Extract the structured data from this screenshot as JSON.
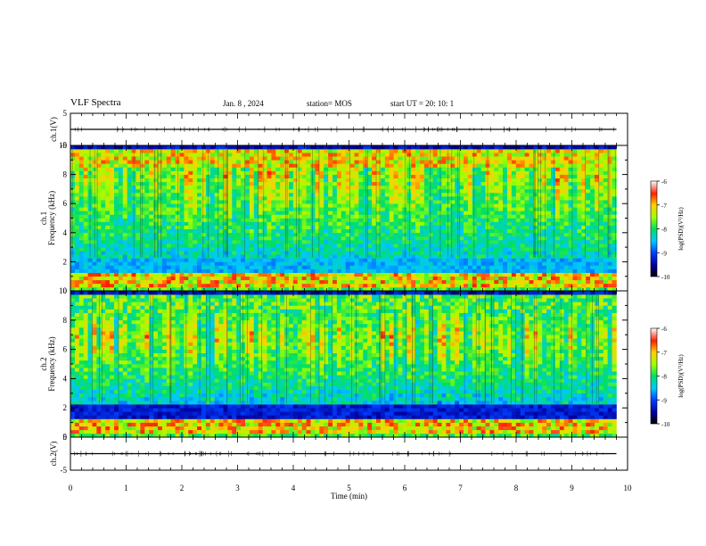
{
  "header": {
    "title": "VLF Spectra",
    "date": "Jan. 8 , 2024",
    "station": "station= MOS",
    "start_ut": "start UT =   20: 10: 1"
  },
  "chart_data": [
    {
      "type": "line",
      "panel": "ch1-voltage",
      "ylabel": "ch.1(V)",
      "ylim": [
        -5,
        5
      ],
      "y_ticks": [
        "5",
        "-5"
      ],
      "xlim": [
        0,
        10
      ],
      "series": [
        {
          "values_note": "",
          "x": [
            0,
            9.8
          ],
          "y": [
            0,
            0
          ]
        }
      ]
    },
    {
      "type": "heatmap",
      "panel": "ch1-spectrogram",
      "ylabel": "ch.1\nFrequency (kHz)",
      "ylim": [
        0,
        10
      ],
      "y_ticks": [
        "0",
        "2",
        "4",
        "6",
        "8",
        "10"
      ],
      "xlim": [
        0,
        10
      ],
      "data_extent_x": [
        0,
        9.8
      ],
      "colorbar": {
        "label": "log(PSD)(V²/Hz)",
        "range": [
          -10,
          -6
        ],
        "ticks": [
          "-6",
          "-7",
          "-8",
          "-9",
          "-10"
        ]
      }
    },
    {
      "type": "heatmap",
      "panel": "ch2-spectrogram",
      "ylabel": "ch.2\nFrequency (kHz)",
      "ylim": [
        0,
        10
      ],
      "y_ticks": [
        "0",
        "2",
        "4",
        "6",
        "8",
        "10"
      ],
      "xlim": [
        0,
        10
      ],
      "data_extent_x": [
        0,
        9.8
      ],
      "colorbar": {
        "label": "log(PSD)(V²/Hz)",
        "range": [
          -10,
          -6
        ],
        "ticks": [
          "-6",
          "-7",
          "-8",
          "-9",
          "-10"
        ]
      }
    },
    {
      "type": "line",
      "panel": "ch2-voltage",
      "ylabel": "ch.2(V)",
      "ylim": [
        -5,
        5
      ],
      "y_ticks": [
        "5",
        "-5"
      ],
      "xlim": [
        0,
        10
      ],
      "xlabel": "Time (min)",
      "x_ticks": [
        "0",
        "1",
        "2",
        "3",
        "4",
        "5",
        "6",
        "7",
        "8",
        "9",
        "10"
      ],
      "series": [
        {
          "x": [
            0,
            9.8
          ],
          "y": [
            0,
            0
          ]
        }
      ]
    }
  ]
}
